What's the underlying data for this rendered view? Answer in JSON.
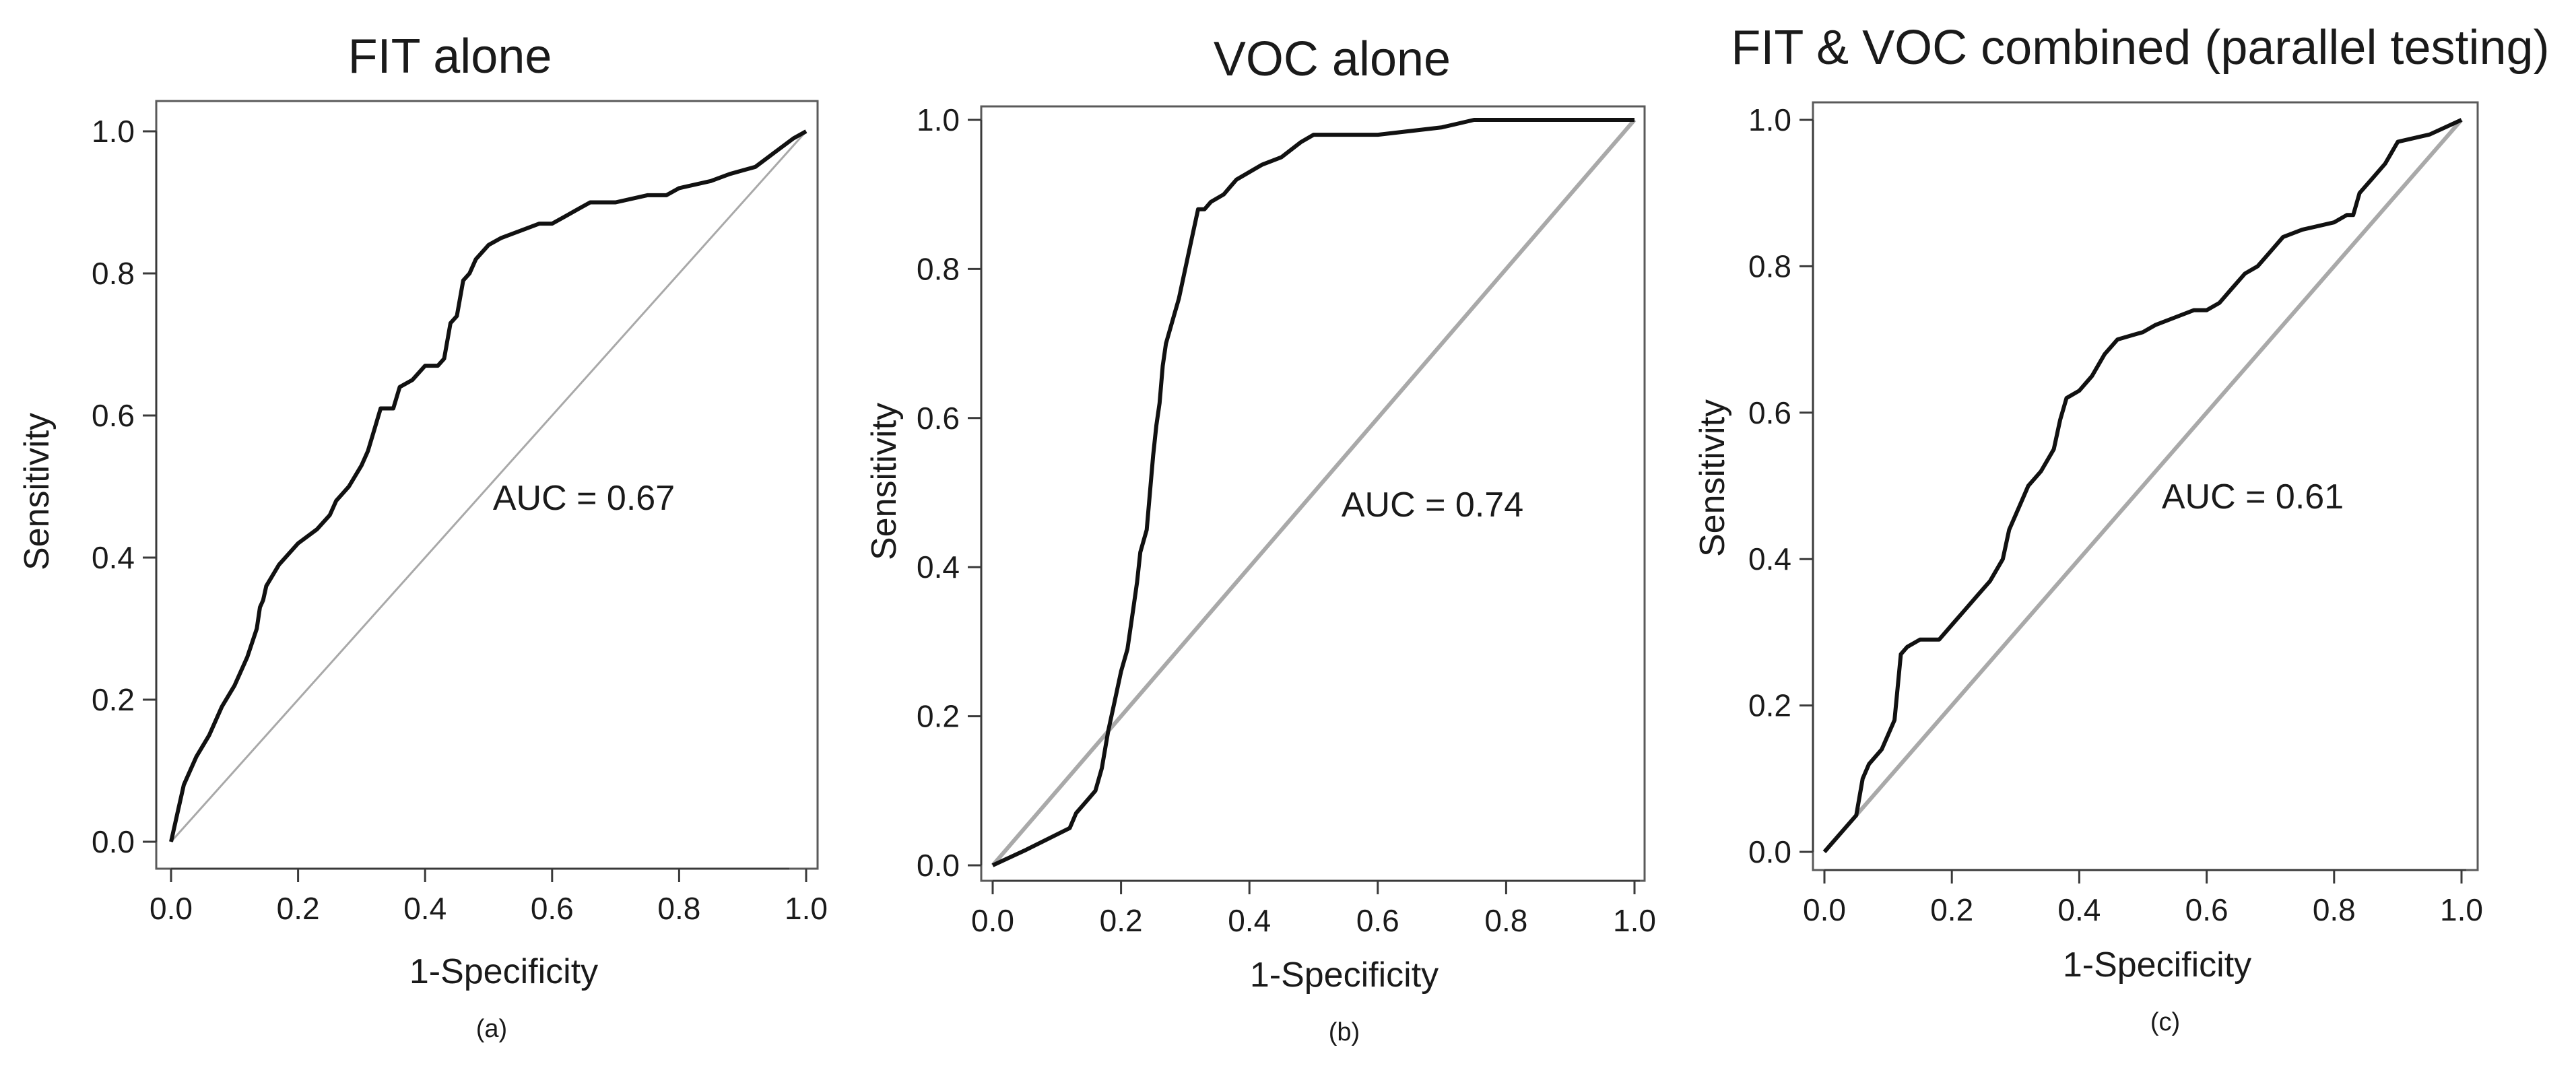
{
  "colors": {
    "roc": "#111111",
    "diagonal": "#a9a9a9",
    "frame": "#5a5a5a"
  },
  "chart_data": [
    {
      "type": "line",
      "title": "FIT alone",
      "xlabel": "1-Specificity",
      "ylabel": "Sensitivity",
      "caption": "(a)",
      "annotation": "AUC = 0.67",
      "xlim": [
        0,
        1
      ],
      "ylim": [
        0,
        1
      ],
      "xticks": [
        "0.0",
        "0.2",
        "0.4",
        "0.6",
        "0.8",
        "1.0"
      ],
      "yticks": [
        "0.0",
        "0.2",
        "0.4",
        "0.6",
        "0.8",
        "1.0"
      ],
      "series": [
        {
          "name": "ROC",
          "x": [
            0,
            0.01,
            0.02,
            0.025,
            0.04,
            0.06,
            0.08,
            0.1,
            0.12,
            0.135,
            0.14,
            0.145,
            0.15,
            0.17,
            0.2,
            0.23,
            0.25,
            0.26,
            0.28,
            0.3,
            0.31,
            0.32,
            0.33,
            0.35,
            0.36,
            0.38,
            0.4,
            0.42,
            0.43,
            0.44,
            0.45,
            0.46,
            0.47,
            0.48,
            0.5,
            0.52,
            0.55,
            0.58,
            0.6,
            0.62,
            0.64,
            0.66,
            0.7,
            0.75,
            0.78,
            0.8,
            0.85,
            0.88,
            0.92,
            0.95,
            0.98,
            1.0
          ],
          "y": [
            0,
            0.04,
            0.08,
            0.09,
            0.12,
            0.15,
            0.19,
            0.22,
            0.26,
            0.3,
            0.33,
            0.34,
            0.36,
            0.39,
            0.42,
            0.44,
            0.46,
            0.48,
            0.5,
            0.53,
            0.55,
            0.58,
            0.61,
            0.61,
            0.64,
            0.65,
            0.67,
            0.67,
            0.68,
            0.73,
            0.74,
            0.79,
            0.8,
            0.82,
            0.84,
            0.85,
            0.86,
            0.87,
            0.87,
            0.88,
            0.89,
            0.9,
            0.9,
            0.91,
            0.91,
            0.92,
            0.93,
            0.94,
            0.95,
            0.97,
            0.99,
            1.0
          ]
        },
        {
          "name": "Reference",
          "x": [
            0,
            1
          ],
          "y": [
            0,
            1
          ]
        }
      ]
    },
    {
      "type": "line",
      "title": "VOC alone",
      "xlabel": "1-Specificity",
      "ylabel": "Sensitivity",
      "caption": "(b)",
      "annotation": "AUC = 0.74",
      "xlim": [
        0,
        1
      ],
      "ylim": [
        0,
        1
      ],
      "xticks": [
        "0.0",
        "0.2",
        "0.4",
        "0.6",
        "0.8",
        "1.0"
      ],
      "yticks": [
        "0.0",
        "0.2",
        "0.4",
        "0.6",
        "0.8",
        "1.0"
      ],
      "series": [
        {
          "name": "ROC",
          "x": [
            0,
            0.05,
            0.12,
            0.13,
            0.15,
            0.16,
            0.17,
            0.18,
            0.185,
            0.19,
            0.2,
            0.21,
            0.215,
            0.22,
            0.225,
            0.23,
            0.24,
            0.245,
            0.25,
            0.255,
            0.26,
            0.265,
            0.27,
            0.28,
            0.29,
            0.3,
            0.31,
            0.32,
            0.33,
            0.34,
            0.36,
            0.37,
            0.38,
            0.4,
            0.42,
            0.45,
            0.48,
            0.5,
            0.6,
            0.7,
            0.75,
            0.8,
            0.9,
            1.0
          ],
          "y": [
            0,
            0.02,
            0.05,
            0.07,
            0.09,
            0.1,
            0.13,
            0.18,
            0.2,
            0.22,
            0.26,
            0.29,
            0.32,
            0.35,
            0.38,
            0.42,
            0.45,
            0.5,
            0.55,
            0.59,
            0.62,
            0.67,
            0.7,
            0.73,
            0.76,
            0.8,
            0.84,
            0.88,
            0.88,
            0.89,
            0.9,
            0.91,
            0.92,
            0.93,
            0.94,
            0.95,
            0.97,
            0.98,
            0.98,
            0.99,
            1.0,
            1.0,
            1.0,
            1.0
          ]
        },
        {
          "name": "Reference",
          "x": [
            0,
            1
          ],
          "y": [
            0,
            1
          ]
        }
      ]
    },
    {
      "type": "line",
      "title": "FIT & VOC combined (parallel testing)",
      "xlabel": "1-Specificity",
      "ylabel": "Sensitivity",
      "caption": "(c)",
      "annotation": "AUC = 0.61",
      "xlim": [
        0,
        1
      ],
      "ylim": [
        0,
        1
      ],
      "xticks": [
        "0.0",
        "0.2",
        "0.4",
        "0.6",
        "0.8",
        "1.0"
      ],
      "yticks": [
        "0.0",
        "0.2",
        "0.4",
        "0.6",
        "0.8",
        "1.0"
      ],
      "series": [
        {
          "name": "ROC",
          "x": [
            0,
            0.05,
            0.06,
            0.07,
            0.09,
            0.1,
            0.11,
            0.12,
            0.13,
            0.15,
            0.18,
            0.2,
            0.22,
            0.24,
            0.26,
            0.28,
            0.29,
            0.3,
            0.31,
            0.32,
            0.34,
            0.36,
            0.37,
            0.38,
            0.4,
            0.42,
            0.44,
            0.46,
            0.5,
            0.52,
            0.55,
            0.58,
            0.6,
            0.62,
            0.64,
            0.66,
            0.68,
            0.7,
            0.72,
            0.75,
            0.8,
            0.82,
            0.83,
            0.84,
            0.86,
            0.88,
            0.9,
            0.95,
            1.0
          ],
          "y": [
            0,
            0.05,
            0.1,
            0.12,
            0.14,
            0.16,
            0.18,
            0.27,
            0.28,
            0.29,
            0.29,
            0.31,
            0.33,
            0.35,
            0.37,
            0.4,
            0.44,
            0.46,
            0.48,
            0.5,
            0.52,
            0.55,
            0.59,
            0.62,
            0.63,
            0.65,
            0.68,
            0.7,
            0.71,
            0.72,
            0.73,
            0.74,
            0.74,
            0.75,
            0.77,
            0.79,
            0.8,
            0.82,
            0.84,
            0.85,
            0.86,
            0.87,
            0.87,
            0.9,
            0.92,
            0.94,
            0.97,
            0.98,
            1.0
          ]
        },
        {
          "name": "Reference",
          "x": [
            0,
            1
          ],
          "y": [
            0,
            1
          ]
        }
      ]
    }
  ]
}
